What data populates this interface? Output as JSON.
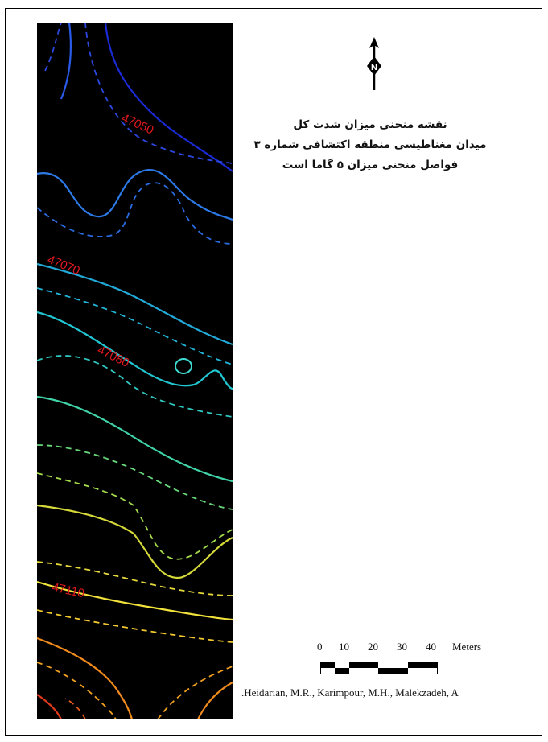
{
  "map": {
    "contour_labels": [
      "47050",
      "47070",
      "47080",
      "47110"
    ],
    "colors": {
      "background": "#000000",
      "contour_low": "#1a2bd6",
      "contour_mid": "#21c6d1",
      "contour_high": "#e03a1a",
      "label": "#e0191e"
    }
  },
  "north_arrow": {
    "letter": "N",
    "icon": "north-arrow-icon"
  },
  "title": {
    "line1": "نقشه منحنی میزان شدت کل",
    "line2": "میدان مغناطیسی منطقه اکتشافی شماره ۳",
    "line3": "فواصل منحنی میزان ۵ گاما است"
  },
  "scale": {
    "ticks": [
      "0",
      "10",
      "20",
      "30",
      "40"
    ],
    "unit": "Meters"
  },
  "credit": ".Heidarian, M.R., Karimpour, M.H., Malekzadeh, A"
}
